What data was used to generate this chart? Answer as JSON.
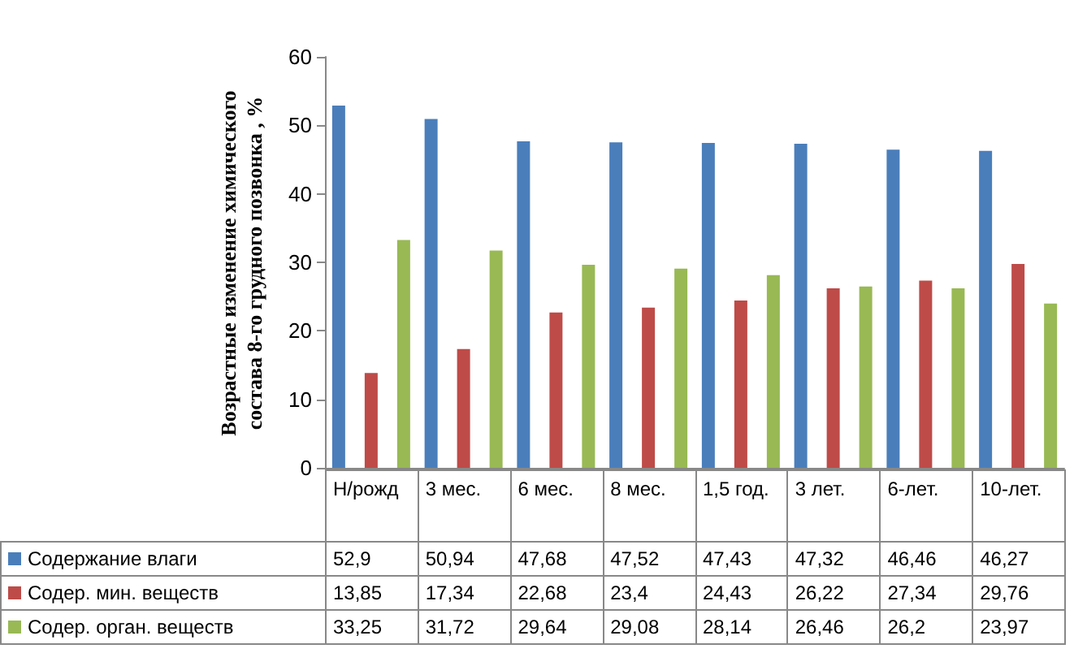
{
  "chart_data": {
    "type": "bar",
    "ylabel": "Возрастные изменение химического состава 8-го грудного позвонка , %",
    "categories": [
      "Н/рожд",
      "3 мес.",
      "6 мес.",
      "8 мес.",
      "1,5 год.",
      "3 лет.",
      "6-лет.",
      "10-лет."
    ],
    "series": [
      {
        "name": "Содержание влаги",
        "color": "#4a7ebb",
        "values": [
          52.9,
          50.94,
          47.68,
          47.52,
          47.43,
          47.32,
          46.46,
          46.27
        ],
        "value_labels": [
          "52,9",
          "50,94",
          "47,68",
          "47,52",
          "47,43",
          "47,32",
          "46,46",
          "46,27"
        ]
      },
      {
        "name": "Содер. мин. веществ",
        "color": "#be4b48",
        "values": [
          13.85,
          17.34,
          22.68,
          23.4,
          24.43,
          26.22,
          27.34,
          29.76
        ],
        "value_labels": [
          "13,85",
          "17,34",
          "22,68",
          "23,4",
          "24,43",
          "26,22",
          "27,34",
          "29,76"
        ]
      },
      {
        "name": "Содер. орган. веществ",
        "color": "#98b954",
        "values": [
          33.25,
          31.72,
          29.64,
          29.08,
          28.14,
          26.46,
          26.2,
          23.97
        ],
        "value_labels": [
          "33,25",
          "31,72",
          "29,64",
          "29,08",
          "28,14",
          "26,46",
          "26,2",
          "23,97"
        ]
      }
    ],
    "ylim": [
      0,
      60
    ],
    "yticks": [
      0,
      10,
      20,
      30,
      40,
      50,
      60
    ],
    "grid": false,
    "legend": "bottom"
  }
}
